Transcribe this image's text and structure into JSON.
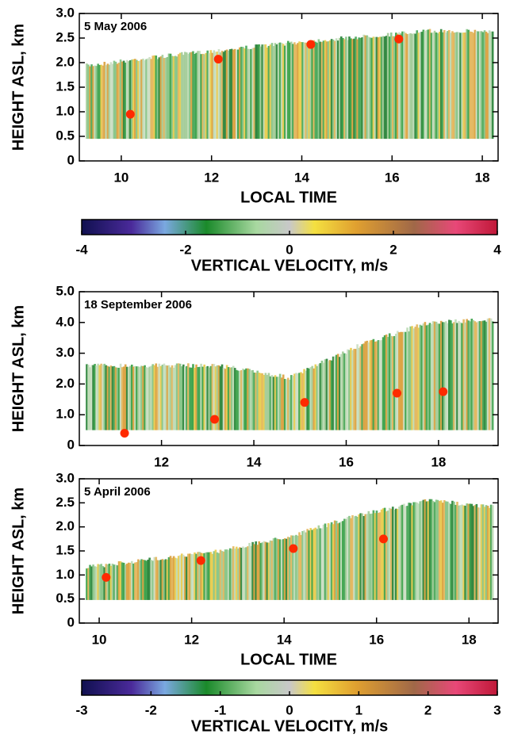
{
  "chart_data": [
    {
      "type": "scatter",
      "title": "5 May 2006",
      "xlabel": "LOCAL TIME",
      "ylabel": "HEIGHT ASL, km",
      "color": "#ff2a00",
      "x": [
        10.2,
        12.15,
        14.2,
        16.15
      ],
      "values": [
        0.95,
        2.07,
        2.37,
        2.48
      ],
      "xlim": [
        9.07,
        18.35
      ],
      "ylim": [
        0,
        3
      ],
      "xticks": [
        10,
        12,
        14,
        16,
        18
      ],
      "yticks": [
        0,
        0.5,
        {
          "value": 1,
          "label": "1.0"
        },
        1.5,
        {
          "value": 2,
          "label": "2.0"
        },
        2.5,
        {
          "value": 3,
          "label": "3.0"
        }
      ]
    },
    {
      "type": "colorbar",
      "xlabel": "VERTICAL VELOCITY, m/s",
      "xlim": [
        -4,
        4
      ],
      "xticks": [
        -4,
        -2,
        0,
        2,
        4
      ]
    },
    {
      "type": "scatter",
      "title": "18 September 2006",
      "ylabel": "HEIGHT ASL, km",
      "color": "#ff2a00",
      "x": [
        11.2,
        13.15,
        15.1,
        17.1,
        18.1
      ],
      "values": [
        0.4,
        0.85,
        1.4,
        1.7,
        1.75
      ],
      "xlim": [
        10.22,
        19.29
      ],
      "ylim": [
        0,
        5
      ],
      "xticks": [
        12,
        14,
        16,
        18
      ],
      "yticks": [
        0,
        {
          "value": 1,
          "label": "1.0"
        },
        {
          "value": 2,
          "label": "2.0"
        },
        {
          "value": 3,
          "label": "3.0"
        },
        {
          "value": 4,
          "label": "4.0"
        },
        {
          "value": 5,
          "label": "5.0"
        }
      ]
    },
    {
      "type": "scatter",
      "title": "5 April 2006",
      "xlabel": "LOCAL TIME",
      "ylabel": "HEIGHT ASL, km",
      "color": "#ff2a00",
      "x": [
        10.15,
        12.2,
        14.2,
        16.15
      ],
      "values": [
        0.95,
        1.3,
        1.55,
        1.75
      ],
      "xlim": [
        9.57,
        18.63
      ],
      "ylim": [
        0,
        3
      ],
      "xticks": [
        10,
        12,
        14,
        16,
        18
      ],
      "yticks": [
        0,
        0.5,
        {
          "value": 1,
          "label": "1.0"
        },
        1.5,
        {
          "value": 2,
          "label": "2.0"
        },
        2.5,
        {
          "value": 3,
          "label": "3.0"
        }
      ]
    },
    {
      "type": "colorbar",
      "xlabel": "VERTICAL VELOCITY, m/s",
      "xlim": [
        -3,
        3
      ],
      "xticks": [
        -3,
        -2,
        -1,
        0,
        1,
        2,
        3
      ]
    }
  ]
}
